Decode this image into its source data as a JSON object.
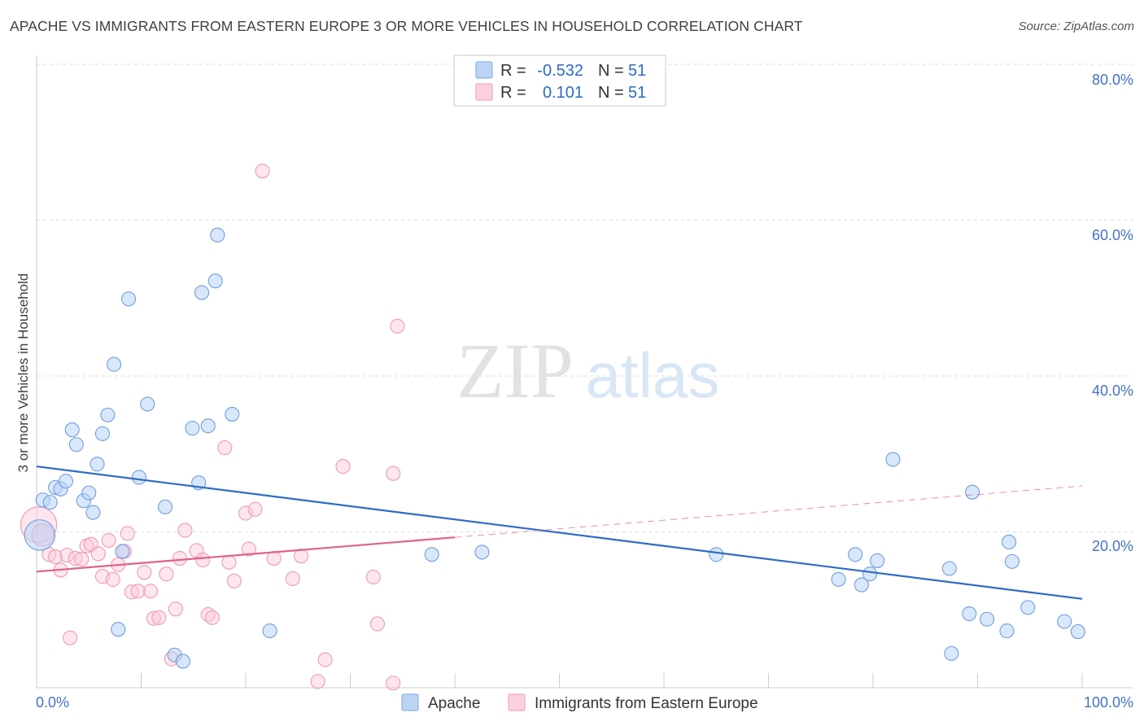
{
  "title": "APACHE VS IMMIGRANTS FROM EASTERN EUROPE 3 OR MORE VEHICLES IN HOUSEHOLD CORRELATION CHART",
  "source": "Source: ZipAtlas.com",
  "watermark": {
    "zip": "ZIP",
    "atlas": "atlas"
  },
  "colors": {
    "apache": "#8ab4e8",
    "apache_line": "#2e6bc7",
    "immigrants": "#f4a6bf",
    "immigrants_line": "#e0608a",
    "grid": "#dddddd",
    "tick_text": "#4472c4"
  },
  "stats_legend": [
    {
      "r_label": "R =",
      "r_value": "-0.532",
      "n_label": "N =",
      "n_value": "51"
    },
    {
      "r_label": "R =",
      "r_value": "0.101",
      "n_label": "N =",
      "n_value": "51"
    }
  ],
  "chart_data": {
    "type": "scatter",
    "title": "APACHE VS IMMIGRANTS FROM EASTERN EUROPE 3 OR MORE VEHICLES IN HOUSEHOLD CORRELATION CHART",
    "xlabel": "",
    "ylabel": "3 or more Vehicles in Household",
    "xlim": [
      0,
      100
    ],
    "ylim": [
      0,
      80
    ],
    "x_tick_labels": [
      "0.0%",
      "100.0%"
    ],
    "y_ticks": [
      20,
      40,
      60,
      80
    ],
    "y_tick_labels": [
      "20.0%",
      "40.0%",
      "60.0%",
      "80.0%"
    ],
    "grid": true,
    "legend_position": "bottom",
    "series": [
      {
        "name": "Apache",
        "color": "#8ab4e8",
        "trend": {
          "x": [
            0,
            100
          ],
          "y": [
            28.4,
            11.4
          ],
          "style": "solid"
        },
        "points": [
          {
            "x": 0.3,
            "y": 19.6,
            "s": 2.2
          },
          {
            "x": 0.6,
            "y": 24.1
          },
          {
            "x": 1.3,
            "y": 23.8
          },
          {
            "x": 1.8,
            "y": 25.7
          },
          {
            "x": 2.3,
            "y": 25.5
          },
          {
            "x": 2.8,
            "y": 26.5
          },
          {
            "x": 3.4,
            "y": 33.1
          },
          {
            "x": 3.8,
            "y": 31.2
          },
          {
            "x": 4.5,
            "y": 24.0
          },
          {
            "x": 5.0,
            "y": 25.0
          },
          {
            "x": 5.4,
            "y": 22.5
          },
          {
            "x": 5.8,
            "y": 28.7
          },
          {
            "x": 6.3,
            "y": 32.6
          },
          {
            "x": 6.8,
            "y": 35.0
          },
          {
            "x": 7.4,
            "y": 41.5
          },
          {
            "x": 7.8,
            "y": 7.5
          },
          {
            "x": 8.2,
            "y": 17.5
          },
          {
            "x": 8.8,
            "y": 49.9
          },
          {
            "x": 9.8,
            "y": 27.0
          },
          {
            "x": 10.6,
            "y": 36.4
          },
          {
            "x": 12.3,
            "y": 23.2
          },
          {
            "x": 13.2,
            "y": 4.2
          },
          {
            "x": 14.0,
            "y": 3.4
          },
          {
            "x": 14.9,
            "y": 33.3
          },
          {
            "x": 15.5,
            "y": 26.3
          },
          {
            "x": 15.8,
            "y": 50.7
          },
          {
            "x": 16.4,
            "y": 33.6
          },
          {
            "x": 17.1,
            "y": 52.2
          },
          {
            "x": 17.3,
            "y": 58.1
          },
          {
            "x": 18.7,
            "y": 35.1
          },
          {
            "x": 22.3,
            "y": 7.3
          },
          {
            "x": 37.8,
            "y": 17.1
          },
          {
            "x": 42.6,
            "y": 17.4
          },
          {
            "x": 65.0,
            "y": 17.1
          },
          {
            "x": 76.7,
            "y": 13.9
          },
          {
            "x": 78.3,
            "y": 17.1
          },
          {
            "x": 78.9,
            "y": 13.2
          },
          {
            "x": 79.7,
            "y": 14.6
          },
          {
            "x": 80.4,
            "y": 16.3
          },
          {
            "x": 81.9,
            "y": 29.3
          },
          {
            "x": 87.3,
            "y": 15.3
          },
          {
            "x": 87.5,
            "y": 4.4
          },
          {
            "x": 89.2,
            "y": 9.5
          },
          {
            "x": 89.5,
            "y": 25.1
          },
          {
            "x": 90.9,
            "y": 8.8
          },
          {
            "x": 92.8,
            "y": 7.3
          },
          {
            "x": 93.0,
            "y": 18.7
          },
          {
            "x": 93.3,
            "y": 16.2
          },
          {
            "x": 94.8,
            "y": 10.3
          },
          {
            "x": 98.3,
            "y": 8.5
          },
          {
            "x": 99.6,
            "y": 7.2
          }
        ]
      },
      {
        "name": "Immigrants from Eastern Europe",
        "color": "#f4a6bf",
        "trend": {
          "x": [
            0,
            40,
            100
          ],
          "y": [
            14.9,
            19.3,
            25.9
          ],
          "solid_until": 40
        },
        "points": [
          {
            "x": 0.2,
            "y": 20.9,
            "s": 2.6
          },
          {
            "x": 0.6,
            "y": 19.6,
            "s": 1.6
          },
          {
            "x": 1.2,
            "y": 17.1
          },
          {
            "x": 1.8,
            "y": 16.8
          },
          {
            "x": 2.3,
            "y": 15.1
          },
          {
            "x": 2.9,
            "y": 17.0
          },
          {
            "x": 3.2,
            "y": 6.4
          },
          {
            "x": 3.7,
            "y": 16.6
          },
          {
            "x": 4.3,
            "y": 16.5
          },
          {
            "x": 4.8,
            "y": 18.2
          },
          {
            "x": 5.2,
            "y": 18.4
          },
          {
            "x": 5.9,
            "y": 17.2
          },
          {
            "x": 6.3,
            "y": 14.3
          },
          {
            "x": 6.9,
            "y": 18.9
          },
          {
            "x": 7.3,
            "y": 13.9
          },
          {
            "x": 7.8,
            "y": 15.8
          },
          {
            "x": 8.4,
            "y": 17.5
          },
          {
            "x": 8.7,
            "y": 19.8
          },
          {
            "x": 9.1,
            "y": 12.3
          },
          {
            "x": 9.7,
            "y": 12.4
          },
          {
            "x": 10.3,
            "y": 14.8
          },
          {
            "x": 10.9,
            "y": 12.4
          },
          {
            "x": 11.2,
            "y": 8.9
          },
          {
            "x": 11.7,
            "y": 9.0
          },
          {
            "x": 12.4,
            "y": 14.6
          },
          {
            "x": 12.9,
            "y": 3.7
          },
          {
            "x": 13.3,
            "y": 10.1
          },
          {
            "x": 13.7,
            "y": 16.6
          },
          {
            "x": 14.2,
            "y": 20.2
          },
          {
            "x": 15.3,
            "y": 17.6
          },
          {
            "x": 15.9,
            "y": 16.4
          },
          {
            "x": 16.4,
            "y": 9.4
          },
          {
            "x": 16.8,
            "y": 9.0
          },
          {
            "x": 18.0,
            "y": 30.8
          },
          {
            "x": 18.4,
            "y": 16.1
          },
          {
            "x": 18.9,
            "y": 13.7
          },
          {
            "x": 20.0,
            "y": 22.4
          },
          {
            "x": 20.3,
            "y": 17.8
          },
          {
            "x": 20.9,
            "y": 22.9
          },
          {
            "x": 21.6,
            "y": 66.3
          },
          {
            "x": 22.7,
            "y": 16.6
          },
          {
            "x": 24.5,
            "y": 14.0
          },
          {
            "x": 25.3,
            "y": 16.9
          },
          {
            "x": 26.9,
            "y": 0.8
          },
          {
            "x": 27.6,
            "y": 3.6
          },
          {
            "x": 29.3,
            "y": 28.4
          },
          {
            "x": 32.2,
            "y": 14.2
          },
          {
            "x": 32.6,
            "y": 8.2
          },
          {
            "x": 34.1,
            "y": 0.6
          },
          {
            "x": 34.1,
            "y": 27.5
          },
          {
            "x": 34.5,
            "y": 46.4
          }
        ]
      }
    ]
  },
  "bottom_legend": [
    {
      "label": "Apache"
    },
    {
      "label": "Immigrants from Eastern Europe"
    }
  ]
}
